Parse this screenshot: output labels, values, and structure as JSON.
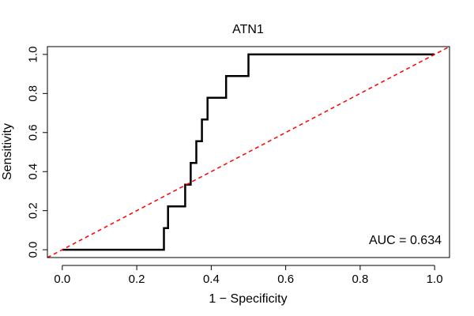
{
  "chart_data": {
    "type": "line",
    "title": "ATN1",
    "xlabel": "1 − Specificity",
    "ylabel": "Sensitivity",
    "xlim": [
      -0.04,
      1.04
    ],
    "ylim": [
      -0.04,
      1.04
    ],
    "x_ticks": [
      "0.0",
      "0.2",
      "0.4",
      "0.6",
      "0.8",
      "1.0"
    ],
    "y_ticks": [
      "0.0",
      "0.2",
      "0.4",
      "0.6",
      "0.8",
      "1.0"
    ],
    "grid": false,
    "series": [
      {
        "role": "roc",
        "color": "#000000",
        "style": "solid",
        "x": [
          0.0,
          0.273,
          0.273,
          0.284,
          0.284,
          0.33,
          0.33,
          0.345,
          0.345,
          0.36,
          0.36,
          0.375,
          0.375,
          0.39,
          0.39,
          0.44,
          0.44,
          0.5,
          0.5,
          1.0
        ],
        "y": [
          0.0,
          0.0,
          0.111,
          0.111,
          0.222,
          0.222,
          0.333,
          0.333,
          0.444,
          0.444,
          0.556,
          0.556,
          0.667,
          0.667,
          0.778,
          0.778,
          0.889,
          0.889,
          1.0,
          1.0
        ]
      },
      {
        "role": "reference",
        "color": "#ff0000",
        "style": "dashed",
        "x": [
          -0.04,
          1.04
        ],
        "y": [
          -0.04,
          1.04
        ]
      }
    ],
    "annotations": [
      {
        "text": "AUC = 0.634",
        "position": "bottom-right"
      }
    ]
  }
}
